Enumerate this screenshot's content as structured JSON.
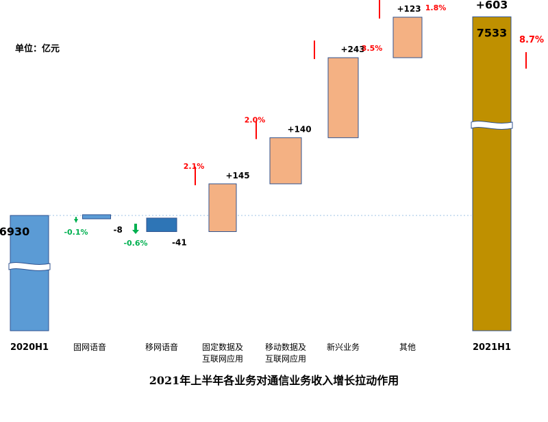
{
  "unit_label": "单位：亿元",
  "title": "2021年上半年各业务对通信业务收入增长拉动作用",
  "colors": {
    "base_start": "#5B9BD5",
    "base_end": "#BF9000",
    "decrease_small": "#5B9BD5",
    "decrease": "#2E75B6",
    "increase": "#F4B183",
    "bar_border": "#2F528F",
    "positive_pct": "#FF0000",
    "negative_pct": "#00B050",
    "reference_line": "#9DC3E6"
  },
  "chart_data": {
    "type": "bar",
    "subtype": "waterfall",
    "title": "2021年上半年各业务对通信业务收入增长拉动作用",
    "unit": "单位：亿元",
    "categories": [
      "2020H1",
      "固网语音",
      "移网语音",
      "固定数据及互联网应用",
      "移动数据及互联网应用",
      "新兴业务",
      "其他",
      "2021H1"
    ],
    "category_lines": [
      [
        "2020H1"
      ],
      [
        "固网语音"
      ],
      [
        "移网语音"
      ],
      [
        "固定数据及",
        "互联网应用"
      ],
      [
        "移动数据及",
        "互联网应用"
      ],
      [
        "新兴业务"
      ],
      [
        "其他"
      ],
      [
        "2021H1"
      ]
    ],
    "kinds": [
      "total",
      "delta",
      "delta",
      "delta",
      "delta",
      "delta",
      "delta",
      "total"
    ],
    "values": [
      6930,
      -8,
      -41,
      145,
      140,
      243,
      123,
      7533
    ],
    "value_labels": [
      "6930",
      "-8",
      "-41",
      "+145",
      "+140",
      "+243",
      "+123",
      "7533"
    ],
    "growth_pct": [
      "",
      "-0.1%",
      "-0.6%",
      "2.1%",
      "2.0%",
      "3.5%",
      "1.8%",
      "8.7%"
    ],
    "total_change_label": "+603",
    "axis_break": true,
    "reference_line_value": 6930,
    "grid": false,
    "legend": "none"
  }
}
